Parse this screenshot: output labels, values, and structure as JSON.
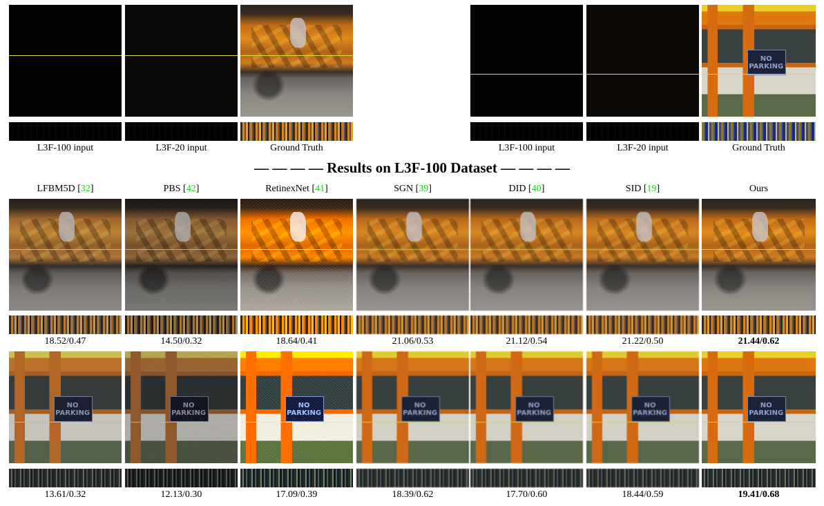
{
  "top_rows": [
    {
      "scene": "bags",
      "captions": [
        "L3F-100 input",
        "L3F-20 input",
        "Ground Truth"
      ]
    },
    {
      "scene": "building",
      "captions": [
        "L3F-100 input",
        "L3F-20 input",
        "Ground Truth"
      ],
      "sign_text": "NO PARKING"
    }
  ],
  "section_title": "— — — — Results on L3F-100 Dataset — — — —",
  "methods": [
    {
      "name": "LFBM5D",
      "ref": "32"
    },
    {
      "name": "PBS",
      "ref": "42"
    },
    {
      "name": "RetinexNet",
      "ref": "41"
    },
    {
      "name": "SGN",
      "ref": "39"
    },
    {
      "name": "DID",
      "ref": "40"
    },
    {
      "name": "SID",
      "ref": "19"
    },
    {
      "name": "Ours",
      "ref": ""
    }
  ],
  "results_row1": [
    "18.52/0.47",
    "14.50/0.32",
    "18.64/0.41",
    "21.06/0.53",
    "21.12/0.54",
    "21.22/0.50",
    "21.44/0.62"
  ],
  "results_row2": [
    "13.61/0.32",
    "12.13/0.30",
    "17.09/0.39",
    "18.39/0.62",
    "17.70/0.60",
    "18.44/0.59",
    "19.41/0.68"
  ],
  "colors": {
    "reference_number": "#22cc22",
    "scanline": "#d8dc3a"
  }
}
